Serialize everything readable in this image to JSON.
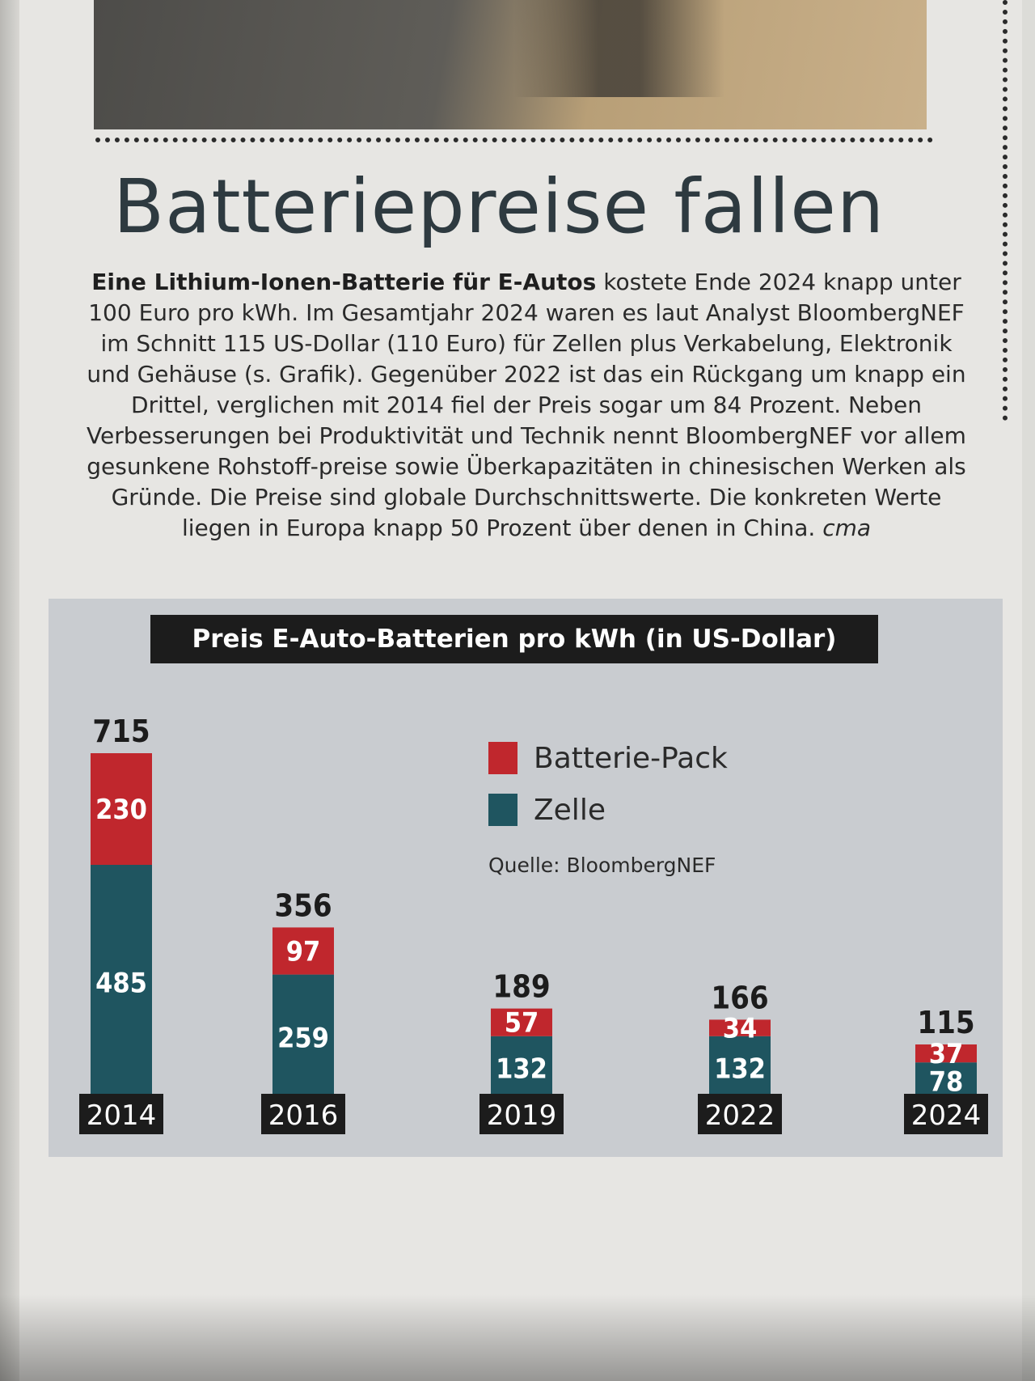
{
  "article": {
    "headline": "Batteriepreise fallen",
    "lead_bold": "Eine Lithium-Ionen-Batterie für E-Autos",
    "body": " kostete Ende 2024 knapp unter 100 Euro pro kWh. Im Gesamtjahr 2024 waren es laut Analyst BloombergNEF im Schnitt 115 US-Dollar (110 Euro) für Zellen plus Verkabelung, Elektronik und Gehäuse (s. Grafik). Gegenüber 2022 ist das ein Rückgang um knapp ein Drittel, verglichen mit 2014 fiel der Preis sogar um 84 Prozent. Neben Verbesserungen bei Produktivität und Technik nennt BloombergNEF vor allem gesunkene Rohstoff-preise sowie Überkapazitäten in chinesischen Werken als Gründe. Die Preise sind globale Durchschnittswerte. Die konkreten Werte liegen in Europa knapp 50 Prozent über denen in China. ",
    "author": "cma"
  },
  "colors": {
    "pack": "#c0272d",
    "cell": "#1f5560",
    "label_bg": "#1c1c1c"
  },
  "chart_data": {
    "type": "bar",
    "stacked": true,
    "title": "Preis E-Auto-Batterien pro kWh (in US-Dollar)",
    "source": "Quelle: BloombergNEF",
    "categories": [
      "2014",
      "2016",
      "2019",
      "2022",
      "2024"
    ],
    "series": [
      {
        "name": "Zelle",
        "values": [
          485,
          259,
          132,
          132,
          78
        ]
      },
      {
        "name": "Batterie-Pack",
        "values": [
          230,
          97,
          57,
          34,
          37
        ]
      }
    ],
    "totals": [
      715,
      356,
      189,
      166,
      115
    ],
    "legend_placement": "top-right",
    "grid": false
  }
}
